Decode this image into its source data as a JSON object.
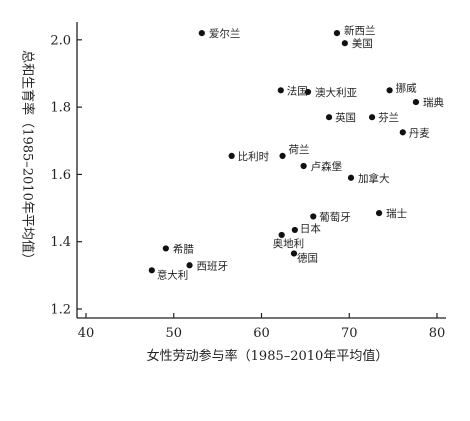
{
  "chart_data": {
    "type": "scatter",
    "title": "",
    "xlabel": "女性劳动参与率（1985–2010年平均值）",
    "ylabel": "总和生育率（1985–2010年平均值）",
    "xlim": [
      40,
      80
    ],
    "ylim": [
      1.2,
      2.05
    ],
    "xticks": [
      40,
      50,
      60,
      70,
      80
    ],
    "yticks": [
      1.2,
      1.4,
      1.6,
      1.8,
      2.0
    ],
    "xtick_labels": [
      "40",
      "50",
      "60",
      "70",
      "80"
    ],
    "ytick_labels": [
      "1.2",
      "1.4",
      "1.6",
      "1.8",
      "2.0"
    ],
    "grid": false,
    "points": [
      {
        "label": "爱尔兰",
        "x": 53.2,
        "y": 2.02
      },
      {
        "label": "新西兰",
        "x": 68.6,
        "y": 2.02
      },
      {
        "label": "美国",
        "x": 69.5,
        "y": 1.99
      },
      {
        "label": "法国",
        "x": 62.2,
        "y": 1.85
      },
      {
        "label": "澳大利亚",
        "x": 65.3,
        "y": 1.845
      },
      {
        "label": "挪威",
        "x": 74.6,
        "y": 1.85
      },
      {
        "label": "瑞典",
        "x": 77.6,
        "y": 1.815
      },
      {
        "label": "英国",
        "x": 67.7,
        "y": 1.77
      },
      {
        "label": "芬兰",
        "x": 72.6,
        "y": 1.77
      },
      {
        "label": "丹麦",
        "x": 76.1,
        "y": 1.725
      },
      {
        "label": "荷兰",
        "x": 62.4,
        "y": 1.655
      },
      {
        "label": "比利时",
        "x": 56.6,
        "y": 1.655
      },
      {
        "label": "卢森堡",
        "x": 64.8,
        "y": 1.625
      },
      {
        "label": "加拿大",
        "x": 70.2,
        "y": 1.59
      },
      {
        "label": "葡萄牙",
        "x": 65.9,
        "y": 1.475
      },
      {
        "label": "瑞士",
        "x": 73.4,
        "y": 1.485
      },
      {
        "label": "日本",
        "x": 63.8,
        "y": 1.435
      },
      {
        "label": "奥地利",
        "x": 62.3,
        "y": 1.42
      },
      {
        "label": "德国",
        "x": 63.7,
        "y": 1.365
      },
      {
        "label": "希腊",
        "x": 49.1,
        "y": 1.38
      },
      {
        "label": "西班牙",
        "x": 51.8,
        "y": 1.33
      },
      {
        "label": "意大利",
        "x": 47.5,
        "y": 1.315
      }
    ]
  }
}
